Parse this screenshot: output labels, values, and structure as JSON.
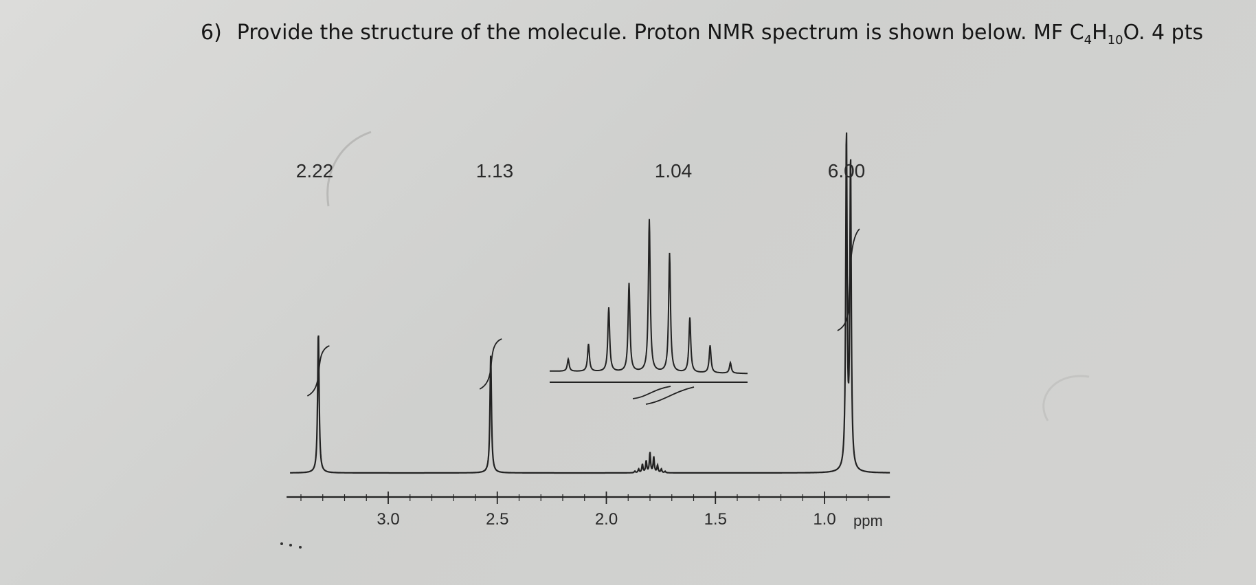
{
  "question": {
    "number": "6)",
    "text_before": "Provide the structure of the molecule. Proton NMR spectrum is shown below. MF C",
    "sub_c": "4",
    "text_h": "H",
    "sub_h": "10",
    "text_after": "O. 4 pts"
  },
  "chart_data": {
    "type": "line",
    "title": "",
    "xlabel": "ppm",
    "ylabel": "",
    "xlim": [
      3.45,
      0.7
    ],
    "x_reversed": true,
    "grid": false,
    "tick_labels": [
      "3.0",
      "2.5",
      "2.0",
      "1.5",
      "1.0"
    ],
    "peaks": [
      {
        "shift_ppm": 3.32,
        "multiplicity": "singlet",
        "relative_height": 0.42,
        "integral": "2.22"
      },
      {
        "shift_ppm": 2.53,
        "multiplicity": "singlet",
        "relative_height": 0.35,
        "integral": "1.13"
      },
      {
        "shift_ppm": 1.8,
        "multiplicity": "multiplet",
        "relative_height": 0.06,
        "integral": "1.04"
      },
      {
        "shift_ppm": 0.89,
        "multiplicity": "doublet",
        "relative_height": 1.0,
        "integral": "6.00"
      }
    ],
    "inset": {
      "description_peaks_rel": [
        0.08,
        0.18,
        0.42,
        0.58,
        1.0,
        0.78,
        0.36,
        0.18,
        0.07
      ],
      "x_range_ppm": [
        1.95,
        1.65
      ]
    }
  }
}
